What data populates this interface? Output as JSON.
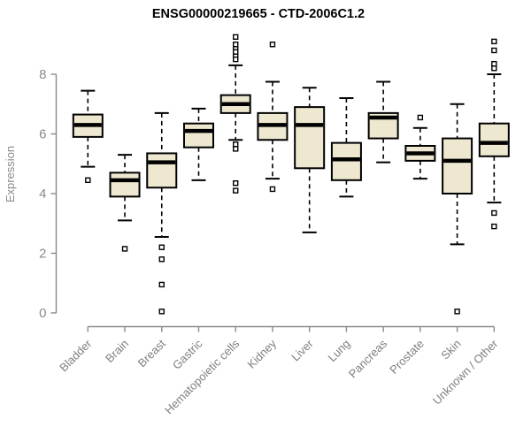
{
  "header": {
    "title": "ENSG00000219665 - CTD-2006C1.2"
  },
  "chart_data": {
    "type": "box",
    "title": "ENSG00000219665 - CTD-2006C1.2",
    "xlabel": "",
    "ylabel": "Expression",
    "ylim": [
      0,
      9.4
    ],
    "yticks": [
      0,
      2,
      4,
      6,
      8
    ],
    "grid": false,
    "legend": "none",
    "categories": [
      "Bladder",
      "Brain",
      "Breast",
      "Gastric",
      "Hematopoietic cells",
      "Kidney",
      "Liver",
      "Lung",
      "Pancreas",
      "Prostate",
      "Skin",
      "Unknown / Other"
    ],
    "series": [
      {
        "name": "Bladder",
        "whisker_low": 4.9,
        "q1": 5.9,
        "median": 6.3,
        "q3": 6.65,
        "whisker_high": 7.45,
        "outliers": [
          4.45
        ]
      },
      {
        "name": "Brain",
        "whisker_low": 3.1,
        "q1": 3.9,
        "median": 4.45,
        "q3": 4.7,
        "whisker_high": 5.3,
        "outliers": [
          2.15
        ]
      },
      {
        "name": "Breast",
        "whisker_low": 2.55,
        "q1": 4.2,
        "median": 5.05,
        "q3": 5.35,
        "whisker_high": 6.7,
        "outliers": [
          2.2,
          1.8,
          0.95,
          0.05
        ]
      },
      {
        "name": "Gastric",
        "whisker_low": 4.45,
        "q1": 5.55,
        "median": 6.1,
        "q3": 6.35,
        "whisker_high": 6.85,
        "outliers": []
      },
      {
        "name": "Hematopoietic cells",
        "whisker_low": 5.8,
        "q1": 6.7,
        "median": 7.0,
        "q3": 7.3,
        "whisker_high": 8.3,
        "outliers": [
          9.25,
          9.0,
          8.85,
          8.75,
          8.6,
          8.5,
          5.65,
          5.5,
          4.35,
          4.1
        ]
      },
      {
        "name": "Kidney",
        "whisker_low": 4.5,
        "q1": 5.8,
        "median": 6.3,
        "q3": 6.7,
        "whisker_high": 7.75,
        "outliers": [
          9.0,
          4.15
        ]
      },
      {
        "name": "Liver",
        "whisker_low": 2.7,
        "q1": 4.85,
        "median": 6.3,
        "q3": 6.9,
        "whisker_high": 7.55,
        "outliers": []
      },
      {
        "name": "Lung",
        "whisker_low": 3.9,
        "q1": 4.45,
        "median": 5.15,
        "q3": 5.7,
        "whisker_high": 7.2,
        "outliers": []
      },
      {
        "name": "Pancreas",
        "whisker_low": 5.05,
        "q1": 5.85,
        "median": 6.55,
        "q3": 6.7,
        "whisker_high": 7.75,
        "outliers": []
      },
      {
        "name": "Prostate",
        "whisker_low": 4.5,
        "q1": 5.1,
        "median": 5.35,
        "q3": 5.6,
        "whisker_high": 6.2,
        "outliers": [
          6.55
        ]
      },
      {
        "name": "Skin",
        "whisker_low": 2.3,
        "q1": 4.0,
        "median": 5.1,
        "q3": 5.85,
        "whisker_high": 7.0,
        "outliers": [
          0.05
        ]
      },
      {
        "name": "Unknown / Other",
        "whisker_low": 3.7,
        "q1": 5.25,
        "median": 5.7,
        "q3": 6.35,
        "whisker_high": 8.0,
        "outliers": [
          9.1,
          8.8,
          8.35,
          8.2,
          3.35,
          2.9
        ]
      }
    ],
    "colors": {
      "box_fill": "#EDE8CF",
      "box_border": "#000000",
      "median": "#000000",
      "whisker": "#000000",
      "outlier_fill": "#ffffff",
      "outlier_border": "#000000",
      "axis": "#8a8a8a",
      "tick_label": "#8a8a8a",
      "x_label": "#7f7f7f",
      "title": "#000000",
      "background": "#ffffff"
    }
  }
}
